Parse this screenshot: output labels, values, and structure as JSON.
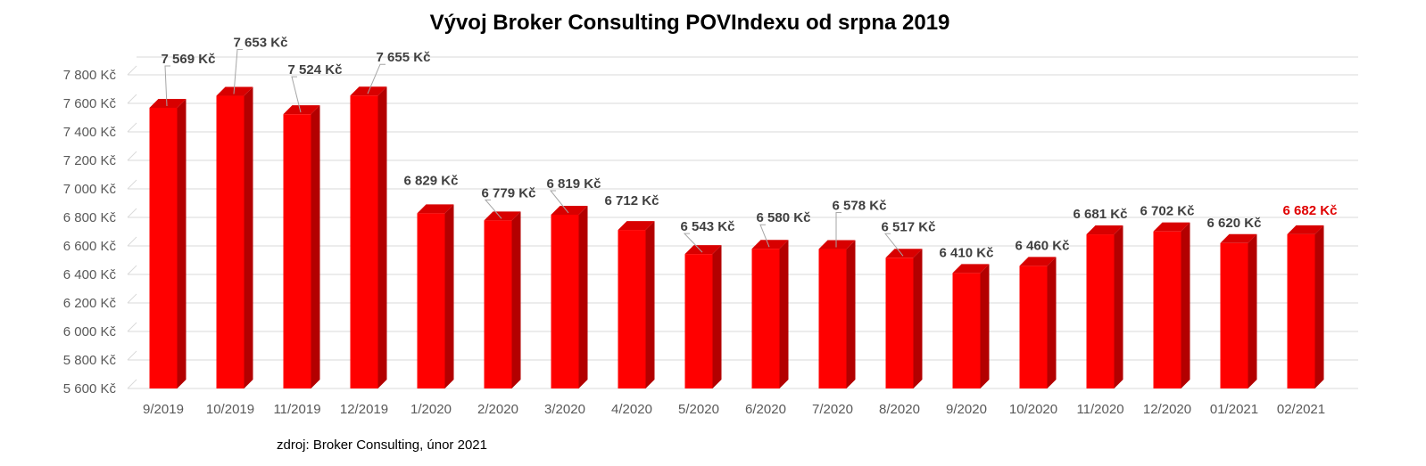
{
  "chart_data": {
    "type": "bar",
    "title": "Vývoj Broker Consulting POVIndexu od srpna 2019",
    "source_note": "zdroj: Broker Consulting, únor 2021",
    "categories": [
      "9/2019",
      "10/2019",
      "11/2019",
      "12/2019",
      "1/2020",
      "2/2020",
      "3/2020",
      "4/2020",
      "5/2020",
      "6/2020",
      "7/2020",
      "8/2020",
      "9/2020",
      "10/2020",
      "11/2020",
      "12/2020",
      "01/2021",
      "02/2021"
    ],
    "values": [
      7569,
      7653,
      7524,
      7655,
      6829,
      6779,
      6819,
      6712,
      6543,
      6580,
      6578,
      6517,
      6410,
      6460,
      6681,
      6702,
      6620,
      6682
    ],
    "data_labels": [
      "7 569 Kč",
      "7 653 Kč",
      "7 524 Kč",
      "7 655 Kč",
      "6 829 Kč",
      "6 779 Kč",
      "6 819 Kč",
      "6 712 Kč",
      "6 543 Kč",
      "6 580 Kč",
      "6 578 Kč",
      "6 517 Kč",
      "6 410 Kč",
      "6 460 Kč",
      "6 681 Kč",
      "6 702 Kč",
      "6 620 Kč",
      "6 682 Kč"
    ],
    "y_ticks": [
      5600,
      5800,
      6000,
      6200,
      6400,
      6600,
      6800,
      7000,
      7200,
      7400,
      7600,
      7800
    ],
    "y_tick_labels": [
      "5 600 Kč",
      "5 800 Kč",
      "6 000 Kč",
      "6 200 Kč",
      "6 400 Kč",
      "6 600 Kč",
      "6 800 Kč",
      "7 000 Kč",
      "7 200 Kč",
      "7 400 Kč",
      "7 600 Kč",
      "7 800 Kč"
    ],
    "ylim": [
      5600,
      7800
    ],
    "grid": true,
    "highlight_index": 17,
    "colors": {
      "bar": "#ff0000",
      "bar_side": "#b30000",
      "bar_top": "#d80000",
      "label": "#404040",
      "highlight_label": "#e00000",
      "grid": "#d9d9d9",
      "axis_text": "#595959"
    }
  }
}
